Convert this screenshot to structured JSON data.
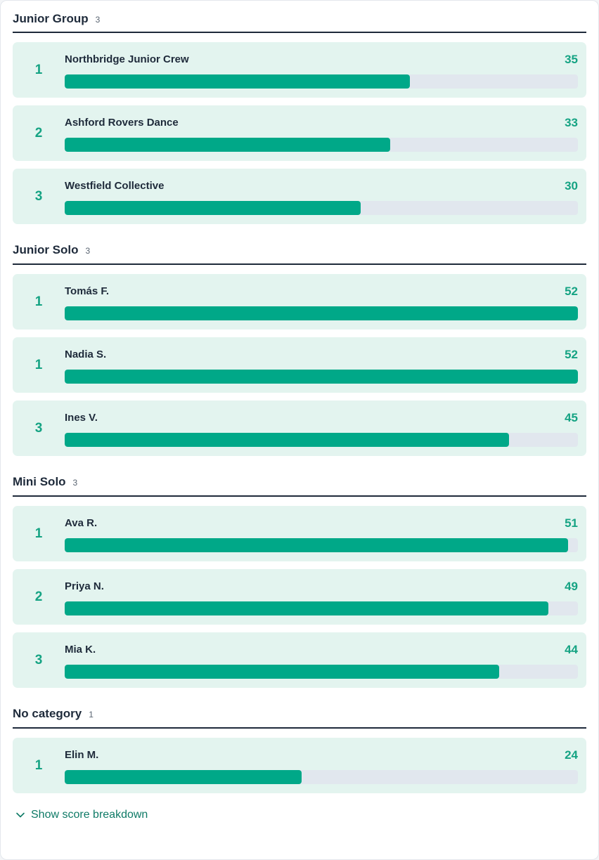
{
  "sections": [
    {
      "title": "Junior Group",
      "count": "3",
      "rows": [
        {
          "rank": "1",
          "name": "Northbridge Junior Crew",
          "score": 35
        },
        {
          "rank": "2",
          "name": "Ashford Rovers Dance",
          "score": 33
        },
        {
          "rank": "3",
          "name": "Westfield Collective",
          "score": 30
        }
      ]
    },
    {
      "title": "Junior Solo",
      "count": "3",
      "rows": [
        {
          "rank": "1",
          "name": "Tomás F.",
          "score": 52
        },
        {
          "rank": "1",
          "name": "Nadia S.",
          "score": 52
        },
        {
          "rank": "3",
          "name": "Ines V.",
          "score": 45
        }
      ]
    },
    {
      "title": "Mini Solo",
      "count": "3",
      "rows": [
        {
          "rank": "1",
          "name": "Ava R.",
          "score": 51
        },
        {
          "rank": "2",
          "name": "Priya N.",
          "score": 49
        },
        {
          "rank": "3",
          "name": "Mia K.",
          "score": 44
        }
      ]
    },
    {
      "title": "No category",
      "count": "1",
      "rows": [
        {
          "rank": "1",
          "name": "Elin M.",
          "score": 24
        }
      ]
    }
  ],
  "max_score": 52,
  "footer": {
    "label": "Show score breakdown",
    "icon": "chevron-down-icon"
  },
  "colors": {
    "accent": "#15a383",
    "bar_fill": "#00a888",
    "row_bg": "#e3f4ef",
    "track": "#e1e7ee"
  }
}
